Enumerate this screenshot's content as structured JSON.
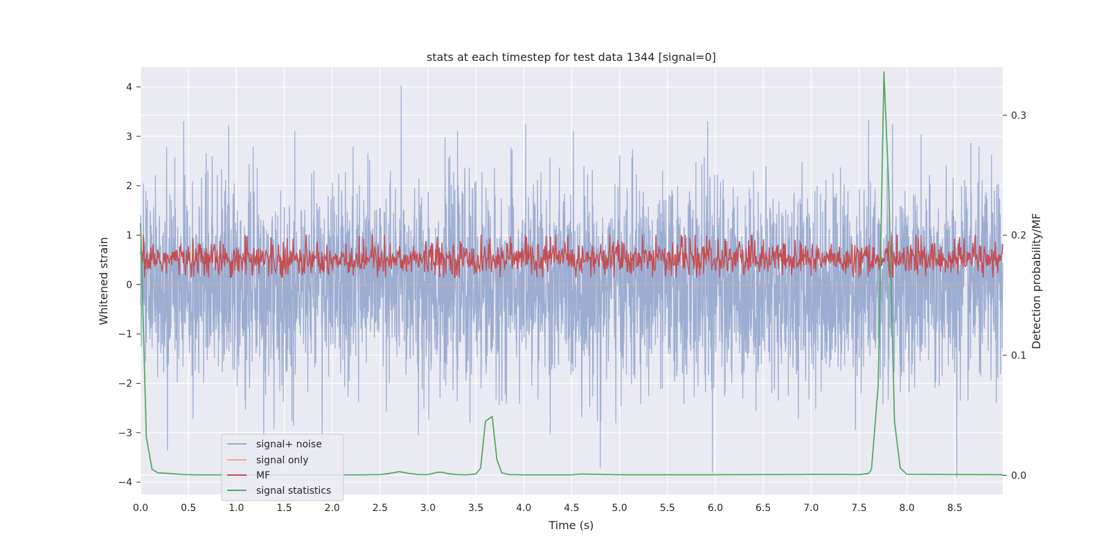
{
  "chart_data": {
    "type": "line",
    "title": "stats at each timestep for test data 1344 [signal=0]",
    "xlabel": "Time (s)",
    "ylabel": "Whitened strain",
    "y2label": "Detection probability/MF",
    "xlim": [
      0.0,
      9.0
    ],
    "ylim": [
      -4.25,
      4.4
    ],
    "y2lim": [
      -0.016,
      0.34
    ],
    "x_ticks": [
      "0.0",
      "0.5",
      "1.0",
      "1.5",
      "2.0",
      "2.5",
      "3.0",
      "3.5",
      "4.0",
      "4.5",
      "5.0",
      "5.5",
      "6.0",
      "6.5",
      "7.0",
      "7.5",
      "8.0",
      "8.5"
    ],
    "y_ticks": [
      "4",
      "3",
      "2",
      "1",
      "0",
      "−1",
      "−2",
      "−3",
      "−4"
    ],
    "y2_ticks": [
      "0.3",
      "0.2",
      "0.1",
      "0.0"
    ],
    "grid": true,
    "legend_position": "lower-left",
    "series": [
      {
        "name": "signal+ noise",
        "axis": "left",
        "color": "#98aad0",
        "x_range": [
          0.0,
          9.0
        ],
        "samples": 3600,
        "mean": 0.0,
        "std": 1.0,
        "peaks": [
          [
            0.45,
            3.3
          ],
          [
            0.92,
            3.22
          ],
          [
            2.72,
            4.02
          ],
          [
            4.02,
            3.25
          ],
          [
            5.92,
            3.3
          ],
          [
            7.6,
            3.32
          ],
          [
            7.85,
            3.25
          ]
        ],
        "troughs": [
          [
            0.28,
            -3.35
          ],
          [
            2.9,
            -3.05
          ],
          [
            4.8,
            -3.7
          ],
          [
            5.97,
            -3.8
          ],
          [
            8.52,
            -3.9
          ]
        ]
      },
      {
        "name": "signal only",
        "axis": "left",
        "color": "#e9a98a",
        "x": [
          0.0,
          9.0
        ],
        "values": [
          0.0,
          0.0
        ]
      },
      {
        "name": "MF",
        "axis": "right",
        "color": "#c44e52",
        "x_range": [
          0.0,
          9.0
        ],
        "samples": 1500,
        "min": 0.165,
        "max": 0.2,
        "typical": 0.18
      },
      {
        "name": "signal statistics",
        "axis": "right",
        "color": "#55a868",
        "x": [
          0.0,
          0.06,
          0.12,
          0.18,
          0.3,
          0.45,
          0.6,
          1.0,
          1.5,
          2.0,
          2.3,
          2.5,
          2.6,
          2.7,
          2.8,
          2.9,
          3.0,
          3.1,
          3.15,
          3.2,
          3.3,
          3.4,
          3.5,
          3.55,
          3.6,
          3.67,
          3.72,
          3.77,
          3.85,
          4.0,
          4.5,
          4.6,
          5.0,
          6.0,
          6.9,
          7.0,
          7.5,
          7.6,
          7.63,
          7.7,
          7.76,
          7.81,
          7.87,
          7.93,
          8.0,
          8.5,
          9.0
        ],
        "values": [
          0.21,
          0.032,
          0.005,
          0.002,
          0.0015,
          0.0005,
          0.0003,
          0.0003,
          0.0003,
          0.0003,
          0.0003,
          0.0005,
          0.0015,
          0.003,
          0.0015,
          0.0005,
          0.0006,
          0.0025,
          0.0025,
          0.0015,
          0.0005,
          0.0003,
          0.001,
          0.006,
          0.045,
          0.049,
          0.013,
          0.002,
          0.0005,
          0.0003,
          0.0003,
          0.001,
          0.0004,
          0.0004,
          0.0006,
          0.0008,
          0.0006,
          0.0015,
          0.005,
          0.075,
          0.336,
          0.24,
          0.045,
          0.006,
          0.0008,
          0.0006,
          0.0004
        ]
      }
    ]
  }
}
